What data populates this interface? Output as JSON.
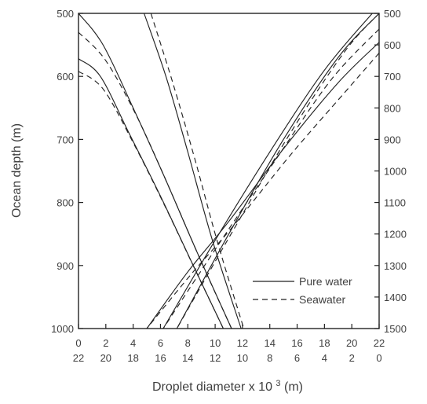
{
  "chart_data": {
    "type": "line",
    "title": "",
    "xlabel": "Droplet  diameter x 10",
    "xlabel_superscript": "3",
    "xlabel_suffix": " (m)",
    "ylabel": "Ocean depth (m)",
    "y2label": "",
    "xlim": [
      0,
      22
    ],
    "ylim": [
      1000,
      500
    ],
    "y2lim": [
      1500,
      500
    ],
    "xticks": [
      0,
      2,
      4,
      6,
      8,
      10,
      12,
      14,
      16,
      18,
      20,
      22
    ],
    "xtick_labels_top": [
      "0",
      "2",
      "4",
      "6",
      "8",
      "10",
      "12",
      "14",
      "16",
      "18",
      "20",
      "22"
    ],
    "xtick_labels_bottom": [
      "22",
      "20",
      "18",
      "16",
      "14",
      "12",
      "10",
      "8",
      "6",
      "4",
      "2",
      "0"
    ],
    "yticks": [
      500,
      600,
      700,
      800,
      900,
      1000
    ],
    "ytick_labels": [
      "500",
      "600",
      "700",
      "800",
      "900",
      "1000"
    ],
    "y2ticks": [
      500,
      600,
      700,
      800,
      900,
      1000,
      1100,
      1200,
      1300,
      1400,
      1500
    ],
    "y2tick_labels": [
      "500",
      "600",
      "700",
      "800",
      "900",
      "1000",
      "1100",
      "1200",
      "1300",
      "1400",
      "1500"
    ],
    "grid": false,
    "legend": {
      "placement": "lower-right",
      "entries": [
        {
          "label": "Pure water",
          "style": "solid"
        },
        {
          "label": "Seawater",
          "style": "dashed"
        }
      ]
    },
    "series": [
      {
        "style": "solid",
        "x": [
          0.0,
          1.8,
          4.0,
          6.3,
          8.7,
          11.2
        ],
        "y": [
          500,
          550,
          650,
          760,
          880,
          1000
        ]
      },
      {
        "style": "dashed",
        "x": [
          0.0,
          2.0,
          4.3,
          6.5,
          8.8,
          11.2
        ],
        "y": [
          530,
          575,
          665,
          770,
          885,
          1000
        ]
      },
      {
        "style": "solid",
        "x": [
          4.8,
          6.4,
          8.0,
          9.8,
          11.9
        ],
        "y": [
          500,
          600,
          720,
          860,
          1000
        ]
      },
      {
        "style": "dashed",
        "x": [
          5.3,
          6.9,
          8.5,
          10.2,
          12.1
        ],
        "y": [
          500,
          610,
          730,
          865,
          1000
        ]
      },
      {
        "style": "solid",
        "x": [
          0.0,
          1.6,
          3.7,
          6.0,
          8.4,
          10.6
        ],
        "y": [
          572,
          600,
          690,
          790,
          900,
          1000
        ]
      },
      {
        "style": "dashed",
        "x": [
          0.0,
          1.8,
          4.0,
          6.2,
          8.5,
          10.6
        ],
        "y": [
          592,
          620,
          705,
          800,
          905,
          1000
        ]
      },
      {
        "style": "solid",
        "x": [
          22.0,
          19.0,
          15.0,
          11.0,
          7.2
        ],
        "y": [
          500,
          570,
          700,
          850,
          1000
        ]
      },
      {
        "style": "dashed",
        "x": [
          22.0,
          19.5,
          15.5,
          11.3,
          7.2
        ],
        "y": [
          500,
          560,
          690,
          845,
          1000
        ]
      },
      {
        "style": "solid",
        "x": [
          21.5,
          18.0,
          14.0,
          10.0,
          6.2
        ],
        "y": [
          500,
          590,
          720,
          860,
          1000
        ]
      },
      {
        "style": "dashed",
        "x": [
          22.0,
          18.5,
          14.5,
          10.3,
          6.2
        ],
        "y": [
          525,
          605,
          730,
          865,
          1000
        ]
      },
      {
        "style": "solid",
        "x": [
          22.0,
          19.0,
          15.0,
          11.0,
          8.0,
          5.0
        ],
        "y": [
          546,
          610,
          715,
          830,
          910,
          1000
        ]
      },
      {
        "style": "dashed",
        "x": [
          22.0,
          19.5,
          15.5,
          11.3,
          8.2,
          5.0
        ],
        "y": [
          563,
          625,
          725,
          838,
          915,
          1000
        ]
      }
    ]
  }
}
